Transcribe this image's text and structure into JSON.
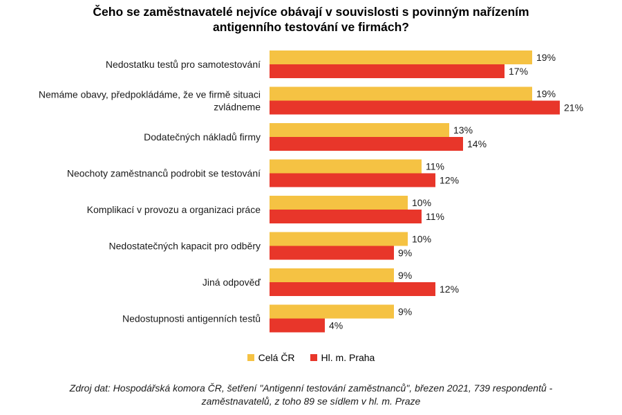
{
  "chart_data": {
    "type": "bar",
    "orientation": "horizontal",
    "title_lines": [
      "Čeho se zaměstnavatelé nejvíce obávají v souvislosti s povinným nařízením",
      "antigenního testování ve firmách?"
    ],
    "categories": [
      [
        "Nedostatku testů pro samotestování"
      ],
      [
        "Nemáme obavy, předpokládáme, že ve firmě situaci",
        "zvládneme"
      ],
      [
        "Dodatečných nákladů firmy"
      ],
      [
        "Neochoty zaměstnanců podrobit se testování"
      ],
      [
        "Komplikací v provozu a organizaci práce"
      ],
      [
        "Nedostatečných kapacit pro odběry"
      ],
      [
        "Jiná odpověď"
      ],
      [
        "Nedostupnosti antigenních testů"
      ]
    ],
    "series": [
      {
        "name": "Celá ČR",
        "color": "#F5C243",
        "values": [
          19,
          19,
          13,
          11,
          10,
          10,
          9,
          9
        ]
      },
      {
        "name": "Hl. m. Praha",
        "color": "#E8362A",
        "values": [
          17,
          21,
          14,
          12,
          11,
          9,
          12,
          4
        ]
      }
    ],
    "value_suffix": "%",
    "xlim": [
      0,
      21
    ],
    "grid": false,
    "legend_position": "bottom"
  },
  "source_lines": [
    "Zdroj dat: Hospodářská komora ČR, šetření \"Antigenní testování zaměstnanců\", březen 2021, 739 respondentů -",
    "zaměstnavatelů, z toho 89 se sídlem v hl. m. Praze"
  ]
}
